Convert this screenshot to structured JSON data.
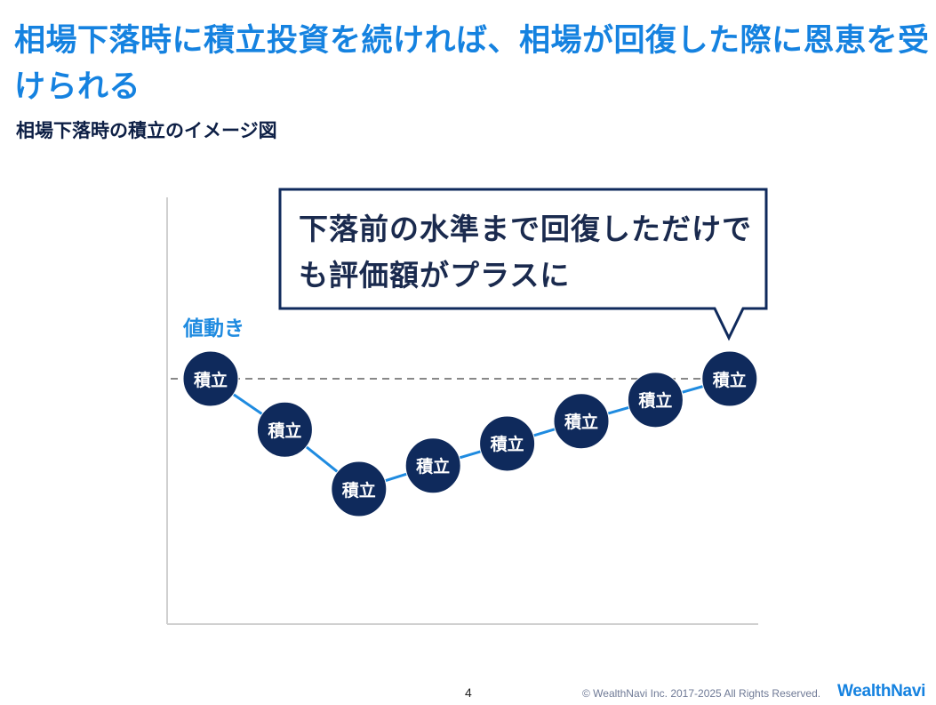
{
  "header": {
    "title": "相場下落時に積立投資を続ければ、相場が回復した際に恩恵を受けられる",
    "subtitle": "相場下落時の積立のイメージ図"
  },
  "diagram": {
    "axis_label": "値動き",
    "callout": "下落前の水準まで回復しただけでも評価額がプラスに",
    "node_label": "積立",
    "values": [
      100,
      88,
      74,
      79.5,
      84.7,
      90,
      95,
      100
    ],
    "baseline": 100,
    "colors": {
      "node": "#0f2a5c",
      "line": "#1f8be0",
      "baseline": "#888888",
      "bubble_border": "#0f2a5c"
    }
  },
  "footer": {
    "page_number": "4",
    "copyright": "© WealthNavi Inc. 2017-2025 All Rights Reserved.",
    "logo": "WealthNavi"
  }
}
